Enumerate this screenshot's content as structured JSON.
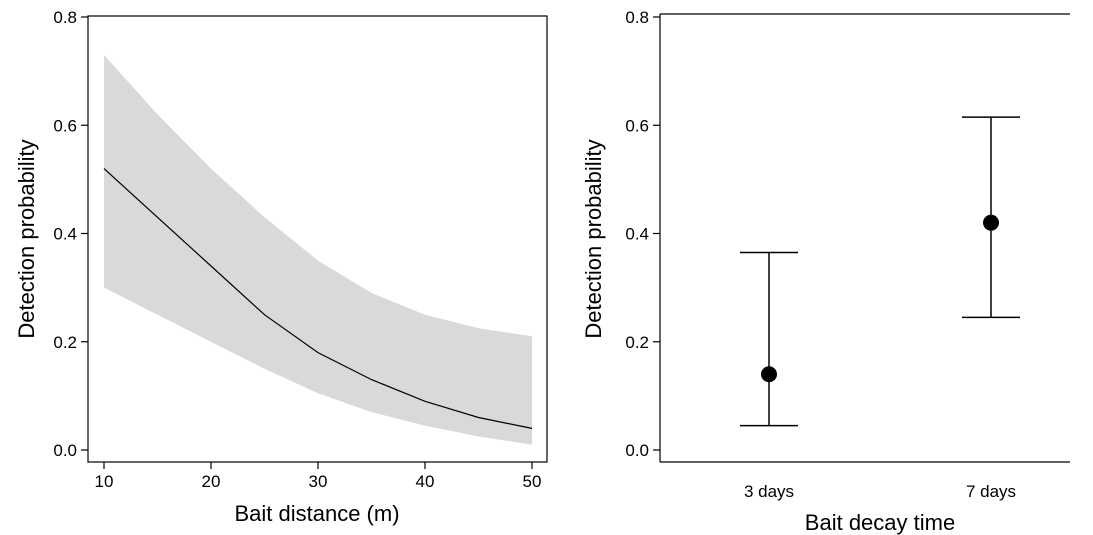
{
  "chart_data": [
    {
      "type": "line",
      "xlabel": "Bait distance (m)",
      "ylabel": "Detection probability",
      "xlim": [
        10,
        50
      ],
      "ylim": [
        0,
        0.8
      ],
      "xticks": [
        10,
        20,
        30,
        40,
        50
      ],
      "yticks": [
        0.0,
        0.2,
        0.4,
        0.6,
        0.8
      ],
      "ytick_labels": [
        "0.0",
        "0.2",
        "0.4",
        "0.6",
        "0.8"
      ],
      "grid": false,
      "legend": "none",
      "colors": {
        "line": "#000000",
        "band": "#d9d9d9"
      },
      "series": [
        {
          "role": "fit-with-confidence-band",
          "x": [
            10,
            15,
            20,
            25,
            30,
            35,
            40,
            45,
            50
          ],
          "y": [
            0.52,
            0.43,
            0.34,
            0.25,
            0.18,
            0.13,
            0.09,
            0.06,
            0.04
          ],
          "lower": [
            0.3,
            0.25,
            0.2,
            0.15,
            0.105,
            0.07,
            0.045,
            0.025,
            0.01
          ],
          "upper": [
            0.73,
            0.62,
            0.52,
            0.43,
            0.35,
            0.29,
            0.25,
            0.225,
            0.21
          ]
        }
      ]
    },
    {
      "type": "scatter",
      "xlabel": "Bait decay time",
      "ylabel": "Detection probability",
      "categories": [
        "3 days",
        "7 days"
      ],
      "ylim": [
        0,
        0.8
      ],
      "yticks": [
        0.0,
        0.2,
        0.4,
        0.6,
        0.8
      ],
      "ytick_labels": [
        "0.0",
        "0.2",
        "0.4",
        "0.6",
        "0.8"
      ],
      "grid": false,
      "legend": "none",
      "colors": {
        "point": "#000000"
      },
      "series": [
        {
          "role": "estimate-with-error-bars",
          "values": [
            0.14,
            0.42
          ],
          "lower": [
            0.045,
            0.245
          ],
          "upper": [
            0.365,
            0.615
          ]
        }
      ]
    }
  ]
}
